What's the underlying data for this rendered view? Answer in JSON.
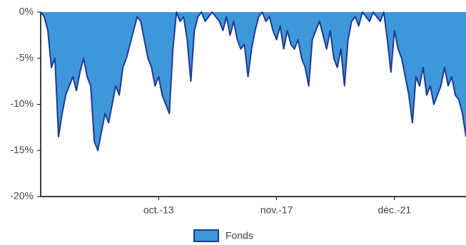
{
  "chart_data": {
    "type": "area",
    "categories": [
      null,
      null,
      null,
      null,
      null,
      null,
      null,
      null,
      null,
      null,
      null,
      null,
      null,
      null,
      null,
      null,
      null,
      null,
      null,
      null,
      null,
      null,
      null,
      null,
      null,
      null,
      null,
      null,
      null,
      null,
      null,
      null,
      null,
      "oct.-13",
      null,
      null,
      null,
      null,
      null,
      null,
      null,
      null,
      null,
      null,
      null,
      null,
      null,
      null,
      null,
      null,
      null,
      null,
      null,
      null,
      null,
      null,
      null,
      null,
      null,
      null,
      null,
      null,
      null,
      null,
      null,
      null,
      "nov.-17",
      null,
      null,
      null,
      null,
      null,
      null,
      null,
      null,
      null,
      null,
      null,
      null,
      null,
      null,
      null,
      null,
      null,
      null,
      null,
      null,
      null,
      null,
      null,
      null,
      null,
      null,
      null,
      null,
      null,
      null,
      null,
      null,
      "déc.-21",
      null,
      null,
      null,
      null,
      null,
      null,
      null,
      null,
      null,
      null,
      null,
      null,
      null,
      null,
      null,
      null,
      null,
      null,
      null,
      null
    ],
    "series": [
      {
        "name": "Fonds",
        "color": "#3d97d9",
        "line_color": "#1f3a93",
        "values": [
          0,
          -0.5,
          -2,
          -6,
          -5,
          -13.5,
          -11,
          -9,
          -8,
          -7,
          -8.5,
          -6.5,
          -5,
          -7,
          -8,
          -14,
          -15,
          -13,
          -11,
          -12,
          -10,
          -8,
          -9,
          -6,
          -5,
          -3.5,
          -2,
          -0.5,
          -1,
          -3,
          -5,
          -6,
          -8,
          -7,
          -9,
          -10,
          -11,
          -4,
          0,
          -1,
          -0.5,
          -3,
          -7.5,
          -2,
          -0.5,
          0,
          -1,
          -0.5,
          0,
          -0.5,
          -1,
          -2,
          -0.5,
          -2.5,
          -1,
          -3,
          -4,
          -3.5,
          -7,
          -4,
          -2,
          -0.5,
          0,
          -1,
          -0.5,
          -2,
          -3,
          -1.5,
          -4,
          -2,
          -3.5,
          -4,
          -3,
          -5,
          -6,
          -8,
          -3,
          -2,
          -1,
          -2.5,
          -4,
          -2,
          -5,
          -6,
          -4,
          -8,
          -3,
          -1,
          -0.5,
          -1.5,
          0,
          -0.5,
          -1,
          0,
          -0.5,
          -1,
          0,
          -3,
          -6.5,
          -2,
          -4,
          -5,
          -7,
          -9,
          -12,
          -7,
          -8,
          -6,
          -9,
          -8,
          -10,
          -9,
          -8,
          -6,
          -8,
          -7,
          -9,
          -9.5,
          -11,
          -13.5
        ]
      }
    ],
    "ylim": [
      -20,
      0
    ],
    "yticks": [
      {
        "value": 0,
        "label": "0%"
      },
      {
        "value": -5,
        "label": "-5%"
      },
      {
        "value": -10,
        "label": "-10%"
      },
      {
        "value": -15,
        "label": "-15%"
      },
      {
        "value": -20,
        "label": "-20%"
      }
    ],
    "legend": "bottom"
  }
}
